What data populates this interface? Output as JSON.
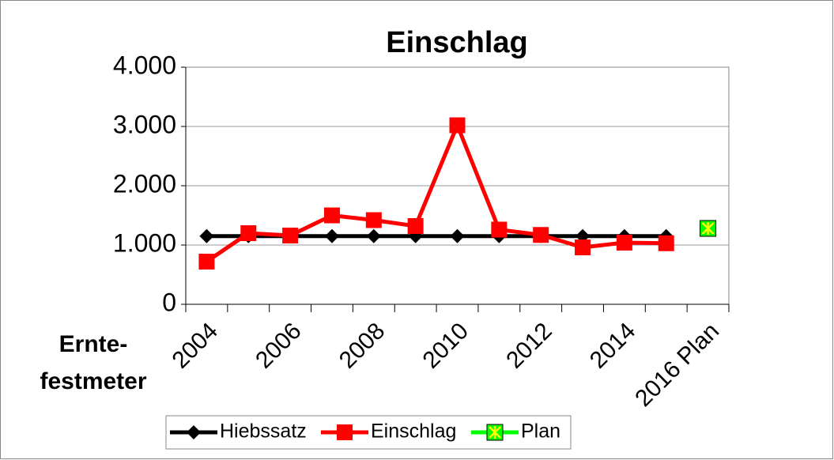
{
  "chart_data": {
    "type": "line",
    "title": "Einschlag",
    "y_label_lines": [
      "Ernte-",
      "festmeter"
    ],
    "categories": [
      "2004",
      null,
      "2006",
      null,
      "2008",
      null,
      "2010",
      null,
      "2012",
      null,
      "2014",
      null,
      "2016 Plan"
    ],
    "series": [
      {
        "name": "Hiebssatz",
        "color": "#000000",
        "marker": "diamond",
        "values": [
          1150,
          1150,
          1150,
          1150,
          1150,
          1150,
          1150,
          1150,
          1150,
          1150,
          1150,
          1150,
          null
        ]
      },
      {
        "name": "Einschlag",
        "color": "#ff0000",
        "marker": "square",
        "values": [
          720,
          1200,
          1160,
          1500,
          1420,
          1320,
          3020,
          1260,
          1170,
          960,
          1040,
          1030,
          null
        ]
      },
      {
        "name": "Plan",
        "color": "#00ff00",
        "marker": "star-square",
        "values": [
          null,
          null,
          null,
          null,
          null,
          null,
          null,
          null,
          null,
          null,
          null,
          null,
          1280
        ]
      }
    ],
    "ylim": [
      0,
      4000
    ],
    "yticks": [
      0,
      {
        "value": 1000,
        "label": "1.000"
      },
      {
        "value": 2000,
        "label": "2.000"
      },
      {
        "value": 3000,
        "label": "3.000"
      },
      {
        "value": 4000,
        "label": "4.000"
      }
    ],
    "grid": true,
    "legend": "bottom"
  }
}
